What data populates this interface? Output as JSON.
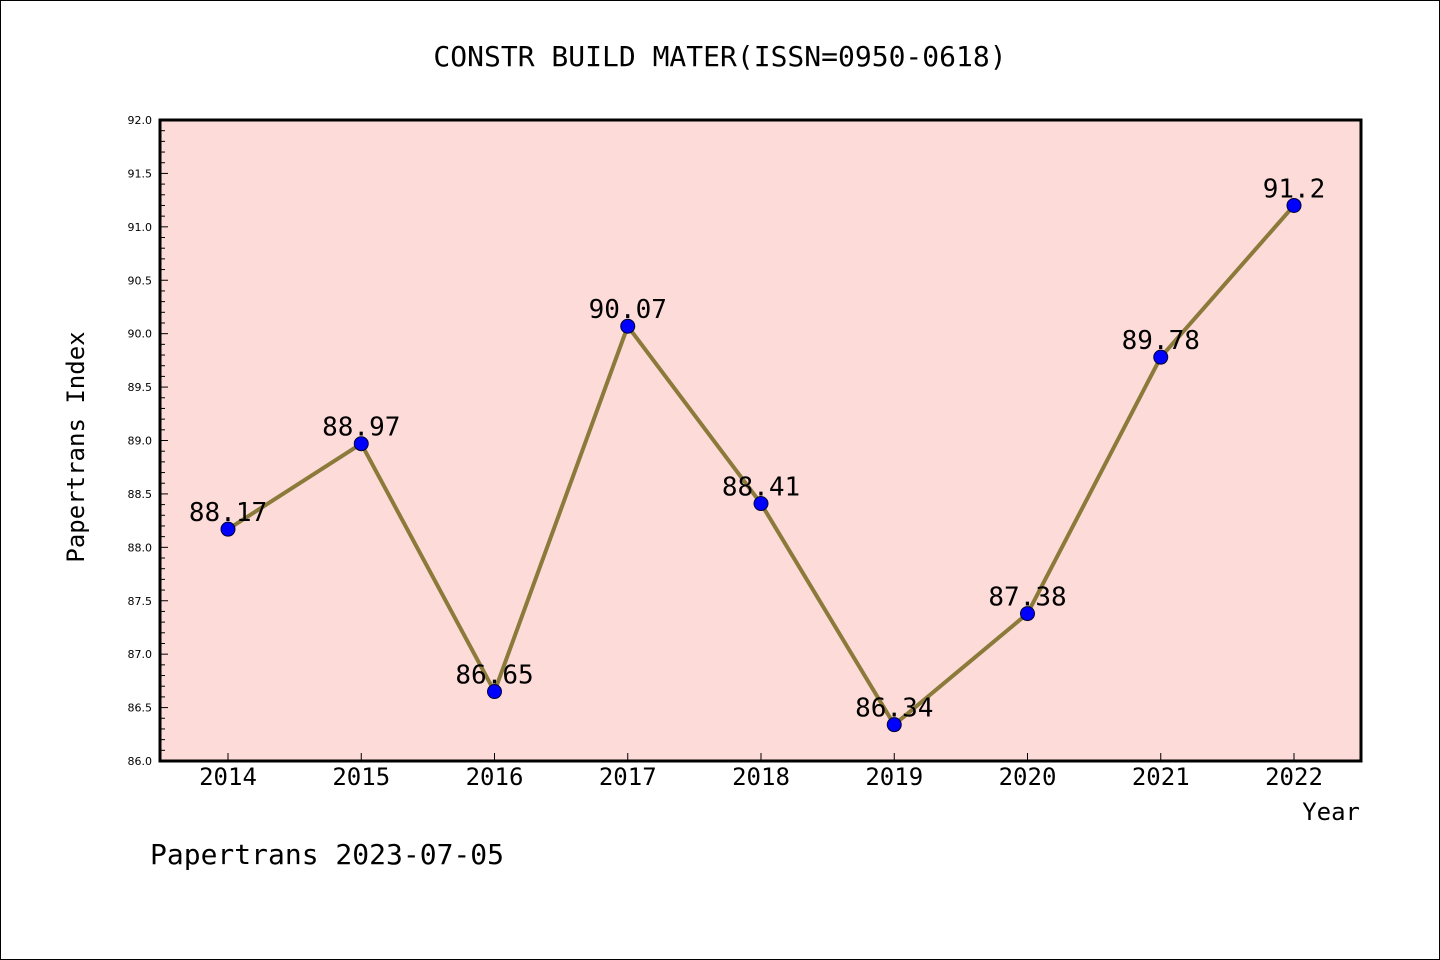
{
  "chart_data": {
    "type": "line",
    "title": "CONSTR BUILD MATER(ISSN=0950-0618)",
    "xlabel": "Year",
    "ylabel": "Papertrans Index",
    "categories": [
      "2014",
      "2015",
      "2016",
      "2017",
      "2018",
      "2019",
      "2020",
      "2021",
      "2022"
    ],
    "series": [
      {
        "values": [
          88.17,
          88.97,
          86.65,
          90.07,
          88.41,
          86.34,
          87.38,
          89.78,
          91.2
        ],
        "data_labels": [
          "88.17",
          "88.97",
          "86.65",
          "90.07",
          "88.41",
          "86.34",
          "87.38",
          "89.78",
          "91.2"
        ],
        "line_color": "#8b7a3a",
        "marker_color": "#0000ff"
      }
    ],
    "ylim": [
      86.0,
      92.0
    ],
    "yticks": [
      "86.0",
      "86.5",
      "87.0",
      "87.5",
      "88.0",
      "88.5",
      "89.0",
      "89.5",
      "90.0",
      "90.5",
      "91.0",
      "91.5",
      "92.0"
    ],
    "plot_background": "#fddbd8",
    "grid": false,
    "legend": "none"
  },
  "footer": "Papertrans 2023-07-05"
}
